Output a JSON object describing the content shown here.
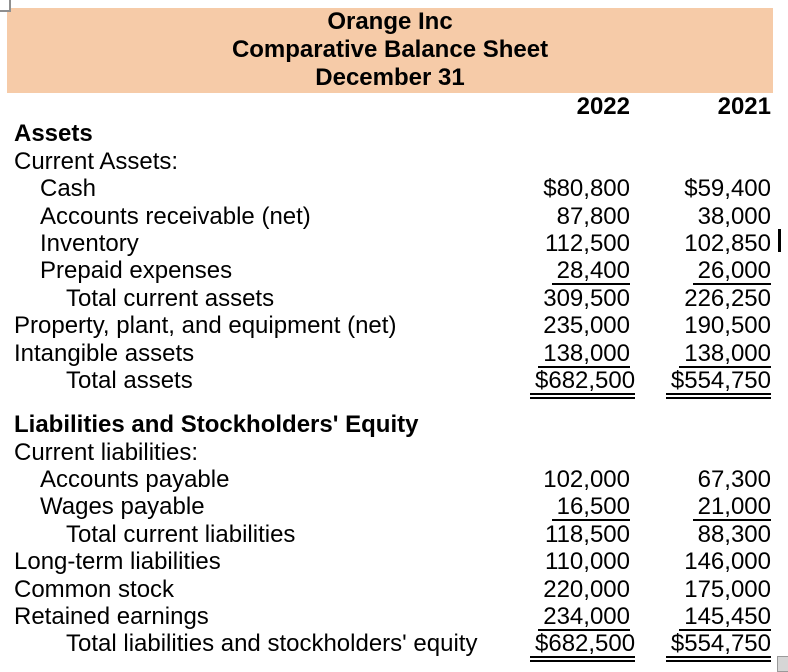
{
  "header": {
    "company": "Orange Inc",
    "report": "Comparative Balance Sheet",
    "date": "December 31",
    "band_color": "#F6CBA8"
  },
  "columns": [
    "2022",
    "2021"
  ],
  "rows": [
    {
      "label": "Assets",
      "indent": 0,
      "bold": true,
      "v2022": "",
      "v2021": "",
      "underline": "none"
    },
    {
      "label": "Current Assets:",
      "indent": 0,
      "bold": false,
      "v2022": "",
      "v2021": "",
      "underline": "none"
    },
    {
      "label": "Cash",
      "indent": 1,
      "bold": false,
      "v2022": "$80,800",
      "v2021": "$59,400",
      "underline": "none"
    },
    {
      "label": "Accounts receivable (net)",
      "indent": 1,
      "bold": false,
      "v2022": "87,800",
      "v2021": "38,000",
      "underline": "none"
    },
    {
      "label": "Inventory",
      "indent": 1,
      "bold": false,
      "v2022": "112,500",
      "v2021": "102,850",
      "underline": "none"
    },
    {
      "label": "Prepaid expenses",
      "indent": 1,
      "bold": false,
      "v2022": "28,400",
      "v2021": "26,000",
      "underline": "single"
    },
    {
      "label": "Total current assets",
      "indent": 2,
      "bold": false,
      "v2022": "309,500",
      "v2021": "226,250",
      "underline": "none"
    },
    {
      "label": "Property, plant, and equipment (net)",
      "indent": 0,
      "bold": false,
      "v2022": "235,000",
      "v2021": "190,500",
      "underline": "none"
    },
    {
      "label": "Intangible assets",
      "indent": 0,
      "bold": false,
      "v2022": "138,000",
      "v2021": "138,000",
      "underline": "single"
    },
    {
      "label": "Total assets",
      "indent": 2,
      "bold": false,
      "v2022": "$682,500",
      "v2021": "$554,750",
      "underline": "double"
    },
    {
      "label": "Liabilities and Stockholders' Equity",
      "indent": 0,
      "bold": true,
      "v2022": "",
      "v2021": "",
      "underline": "none",
      "gap_before": true
    },
    {
      "label": "Current liabilities:",
      "indent": 0,
      "bold": false,
      "v2022": "",
      "v2021": "",
      "underline": "none"
    },
    {
      "label": "Accounts payable",
      "indent": 1,
      "bold": false,
      "v2022": "102,000",
      "v2021": "67,300",
      "underline": "none"
    },
    {
      "label": "Wages payable",
      "indent": 1,
      "bold": false,
      "v2022": "16,500",
      "v2021": "21,000",
      "underline": "single"
    },
    {
      "label": "Total current liabilities",
      "indent": 2,
      "bold": false,
      "v2022": "118,500",
      "v2021": "88,300",
      "underline": "none"
    },
    {
      "label": "Long-term liabilities",
      "indent": 0,
      "bold": false,
      "v2022": "110,000",
      "v2021": "146,000",
      "underline": "none"
    },
    {
      "label": "Common stock",
      "indent": 0,
      "bold": false,
      "v2022": "220,000",
      "v2021": "175,000",
      "underline": "none"
    },
    {
      "label": "Retained earnings",
      "indent": 0,
      "bold": false,
      "v2022": "234,000",
      "v2021": "145,450",
      "underline": "single"
    },
    {
      "label": "Total liabilities and stockholders' equity",
      "indent": 2,
      "bold": false,
      "v2022": "$682,500",
      "v2021": "$554,750",
      "underline": "double"
    }
  ]
}
